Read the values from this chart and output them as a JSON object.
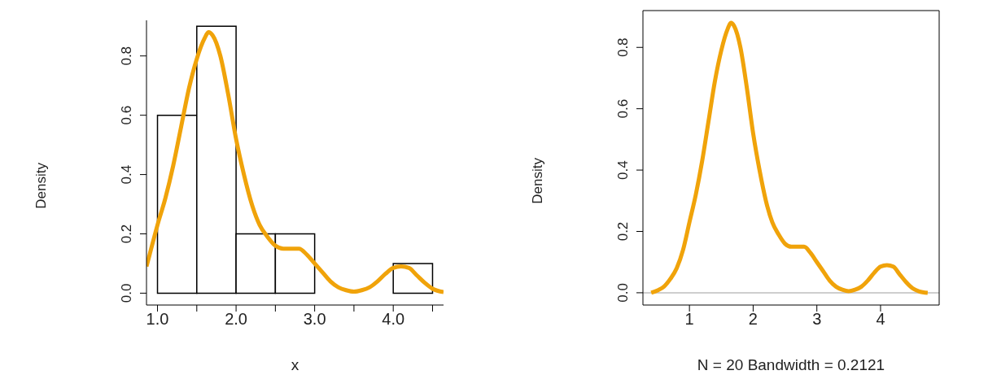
{
  "chart_data": [
    {
      "type": "histogram",
      "xlabel": "x",
      "ylabel": "Density",
      "xlim": [
        0.86,
        4.64
      ],
      "ylim": [
        -0.04,
        0.92
      ],
      "xticks": [
        {
          "value": 1.0,
          "label": "1.0"
        },
        {
          "value": 1.5,
          "label": null
        },
        {
          "value": 2.0,
          "label": "2.0"
        },
        {
          "value": 2.5,
          "label": null
        },
        {
          "value": 3.0,
          "label": "3.0"
        },
        {
          "value": 3.5,
          "label": null
        },
        {
          "value": 4.0,
          "label": "4.0"
        },
        {
          "value": 4.5,
          "label": null
        }
      ],
      "yticks": [
        {
          "value": 0,
          "label": "0.0"
        },
        {
          "value": 0.2,
          "label": "0.2"
        },
        {
          "value": 0.4,
          "label": "0.4"
        },
        {
          "value": 0.6,
          "label": "0.6"
        },
        {
          "value": 0.8,
          "label": "0.8"
        }
      ],
      "series": [
        {
          "type": "histogram",
          "color": "#ffffff",
          "bins": [
            1.0,
            1.5,
            2.0,
            2.5,
            3.0,
            3.5,
            4.0,
            4.5
          ],
          "values": [
            0.6,
            0.9,
            0.2,
            0.2,
            0,
            0,
            0.1
          ]
        },
        {
          "type": "line",
          "color": "#f0a30a",
          "x": [
            0.86,
            0.9,
            1.0,
            1.1,
            1.2,
            1.3,
            1.4,
            1.5,
            1.6,
            1.65,
            1.7,
            1.8,
            1.9,
            2.0,
            2.1,
            2.2,
            2.3,
            2.4,
            2.5,
            2.6,
            2.7,
            2.8,
            2.9,
            3.0,
            3.1,
            3.2,
            3.3,
            3.4,
            3.5,
            3.6,
            3.7,
            3.8,
            3.9,
            4.0,
            4.1,
            4.2,
            4.3,
            4.4,
            4.5,
            4.64
          ],
          "values": [
            0.09,
            0.13,
            0.23,
            0.32,
            0.43,
            0.56,
            0.69,
            0.79,
            0.86,
            0.88,
            0.87,
            0.8,
            0.67,
            0.52,
            0.4,
            0.3,
            0.23,
            0.19,
            0.16,
            0.15,
            0.15,
            0.15,
            0.13,
            0.1,
            0.07,
            0.04,
            0.02,
            0.01,
            0.005,
            0.01,
            0.02,
            0.04,
            0.065,
            0.085,
            0.09,
            0.085,
            0.06,
            0.035,
            0.015,
            0.004
          ]
        }
      ]
    },
    {
      "type": "line",
      "xlabel": "N = 20   Bandwidth = 0.2121",
      "ylabel": "Density",
      "xlim": [
        0.27,
        4.92
      ],
      "ylim": [
        -0.04,
        0.92
      ],
      "xticks": [
        1,
        2,
        3,
        4
      ],
      "yticks": [
        {
          "value": 0,
          "label": "0.0"
        },
        {
          "value": 0.2,
          "label": "0.2"
        },
        {
          "value": 0.4,
          "label": "0.4"
        },
        {
          "value": 0.6,
          "label": "0.6"
        },
        {
          "value": 0.8,
          "label": "0.8"
        }
      ],
      "ref_lines": [
        {
          "axis": "y",
          "value": 0,
          "color": "#bebebe"
        }
      ],
      "series": [
        {
          "type": "line",
          "color": "#f0a30a",
          "x": [
            0.4,
            0.5,
            0.6,
            0.7,
            0.8,
            0.9,
            1.0,
            1.1,
            1.2,
            1.3,
            1.4,
            1.5,
            1.6,
            1.65,
            1.7,
            1.8,
            1.9,
            2.0,
            2.1,
            2.2,
            2.3,
            2.4,
            2.5,
            2.6,
            2.7,
            2.8,
            2.9,
            3.0,
            3.1,
            3.2,
            3.3,
            3.4,
            3.5,
            3.6,
            3.7,
            3.8,
            3.9,
            4.0,
            4.1,
            4.2,
            4.3,
            4.4,
            4.5,
            4.6,
            4.74
          ],
          "values": [
            0.0,
            0.008,
            0.02,
            0.045,
            0.08,
            0.14,
            0.23,
            0.32,
            0.43,
            0.56,
            0.69,
            0.79,
            0.86,
            0.88,
            0.87,
            0.8,
            0.67,
            0.52,
            0.4,
            0.3,
            0.23,
            0.19,
            0.16,
            0.15,
            0.15,
            0.15,
            0.13,
            0.1,
            0.07,
            0.04,
            0.02,
            0.01,
            0.005,
            0.01,
            0.02,
            0.04,
            0.065,
            0.085,
            0.09,
            0.085,
            0.06,
            0.035,
            0.015,
            0.005,
            0.0
          ]
        }
      ]
    }
  ]
}
